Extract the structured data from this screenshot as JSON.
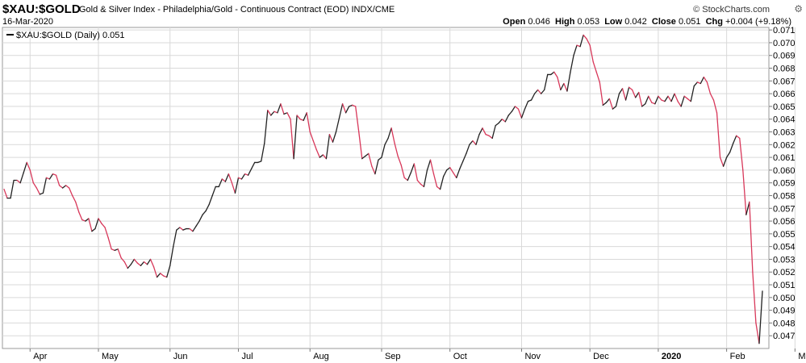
{
  "header": {
    "symbol": "$XAU:$GOLD",
    "description": "Gold & Silver Index - Philadelphia/Gold - Continuous Contract (EOD)  INDX/CME",
    "logo": "© StockCharts.com",
    "date": "16-Mar-2020",
    "open_label": "Open",
    "open_value": "0.046",
    "high_label": "High",
    "high_value": "0.053",
    "low_label": "Low",
    "low_value": "0.042",
    "close_label": "Close",
    "close_value": "0.051",
    "chg_label": "Chg",
    "chg_value": "+0.004 (+9.18%)"
  },
  "legend": {
    "text": "$XAU:$GOLD (Daily) 0.051"
  },
  "colors": {
    "up": "#222222",
    "down": "#d8385a",
    "grid": "#d9d9d9",
    "frame": "#9a9a9a"
  },
  "chart_data": {
    "type": "line",
    "title": "$XAU:$GOLD",
    "ylim": [
      0.046,
      0.0712
    ],
    "y_ticks": [
      "0.047",
      "0.048",
      "0.049",
      "0.050",
      "0.051",
      "0.052",
      "0.053",
      "0.054",
      "0.055",
      "0.056",
      "0.057",
      "0.058",
      "0.059",
      "0.060",
      "0.061",
      "0.062",
      "0.063",
      "0.064",
      "0.065",
      "0.066",
      "0.067",
      "0.068",
      "0.069",
      "0.070",
      "0.071"
    ],
    "x_labels": [
      "Apr",
      "May",
      "Jun",
      "Jul",
      "Aug",
      "Sep",
      "Oct",
      "Nov",
      "Dec",
      "2020",
      "Feb",
      "Mar"
    ],
    "x_label_index": [
      8,
      29,
      51,
      72,
      94,
      116,
      137,
      159,
      180,
      201,
      222,
      243
    ],
    "series": [
      {
        "values": [
          0.0585,
          0.0578,
          0.0578,
          0.0592,
          0.0592,
          0.059,
          0.0598,
          0.0606,
          0.06,
          0.059,
          0.0586,
          0.0581,
          0.0582,
          0.0594,
          0.0593,
          0.0597,
          0.0596,
          0.0588,
          0.0586,
          0.0588,
          0.0586,
          0.058,
          0.0575,
          0.0567,
          0.0561,
          0.056,
          0.0562,
          0.0552,
          0.0554,
          0.0562,
          0.0558,
          0.0555,
          0.0547,
          0.0538,
          0.0537,
          0.0538,
          0.0531,
          0.0528,
          0.0523,
          0.0526,
          0.053,
          0.0527,
          0.0525,
          0.0528,
          0.0526,
          0.053,
          0.0524,
          0.0516,
          0.0519,
          0.0517,
          0.0516,
          0.0525,
          0.054,
          0.0553,
          0.0555,
          0.0553,
          0.0554,
          0.0554,
          0.0552,
          0.0556,
          0.056,
          0.0565,
          0.0568,
          0.0573,
          0.058,
          0.0587,
          0.0587,
          0.0593,
          0.0591,
          0.0597,
          0.059,
          0.0582,
          0.0594,
          0.0593,
          0.0597,
          0.0596,
          0.0601,
          0.0606,
          0.0606,
          0.0607,
          0.0621,
          0.0647,
          0.0643,
          0.0646,
          0.0645,
          0.0652,
          0.0644,
          0.0645,
          0.064,
          0.0609,
          0.0643,
          0.064,
          0.0639,
          0.0645,
          0.063,
          0.0623,
          0.0616,
          0.061,
          0.0612,
          0.0609,
          0.0628,
          0.0622,
          0.063,
          0.0641,
          0.0652,
          0.0645,
          0.065,
          0.0651,
          0.065,
          0.063,
          0.0609,
          0.0611,
          0.0613,
          0.0603,
          0.0597,
          0.0608,
          0.061,
          0.062,
          0.0625,
          0.0633,
          0.0621,
          0.0611,
          0.0604,
          0.0594,
          0.0592,
          0.0598,
          0.0605,
          0.0592,
          0.0589,
          0.0587,
          0.06,
          0.0608,
          0.0597,
          0.0587,
          0.0585,
          0.0595,
          0.06,
          0.0602,
          0.0598,
          0.0594,
          0.0601,
          0.0607,
          0.0613,
          0.062,
          0.0623,
          0.062,
          0.0628,
          0.0633,
          0.0628,
          0.0627,
          0.0625,
          0.0635,
          0.0637,
          0.064,
          0.0638,
          0.0643,
          0.0646,
          0.065,
          0.0648,
          0.0641,
          0.0648,
          0.0654,
          0.0655,
          0.066,
          0.0663,
          0.066,
          0.0663,
          0.0675,
          0.0675,
          0.0677,
          0.0673,
          0.0663,
          0.0668,
          0.0662,
          0.0677,
          0.069,
          0.0698,
          0.0697,
          0.0706,
          0.0703,
          0.0698,
          0.0685,
          0.0677,
          0.0669,
          0.0651,
          0.0653,
          0.0656,
          0.0648,
          0.065,
          0.066,
          0.0664,
          0.0655,
          0.0665,
          0.0663,
          0.0657,
          0.0661,
          0.065,
          0.0652,
          0.0658,
          0.0653,
          0.0652,
          0.0658,
          0.0655,
          0.0654,
          0.0658,
          0.0654,
          0.066,
          0.0654,
          0.065,
          0.0658,
          0.0656,
          0.0654,
          0.0666,
          0.0669,
          0.0668,
          0.0673,
          0.0669,
          0.066,
          0.0655,
          0.0645,
          0.061,
          0.0603,
          0.061,
          0.0614,
          0.0621,
          0.0627,
          0.0625,
          0.06,
          0.0565,
          0.0575,
          0.052,
          0.048,
          0.0464,
          0.0505
        ]
      }
    ]
  }
}
